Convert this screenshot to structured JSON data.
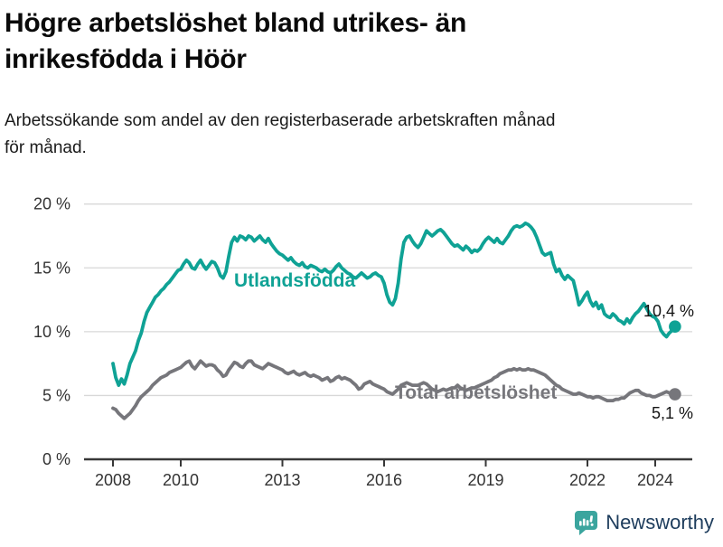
{
  "header": {
    "title_lines": [
      "Högre arbetslöshet bland utrikes- än",
      "inrikesfödda i Höör"
    ],
    "subtitle_lines": [
      "Arbetssökande som andel av den registerbaserade arbetskraften månad",
      "för månad."
    ]
  },
  "footer": {
    "brand_name": "Newsworthy",
    "brand_icon": "bar-chart-speech-bubble",
    "brand_icon_color": "#3ba59e",
    "brand_text_color": "#1d3c5c"
  },
  "colors": {
    "background": "#ffffff",
    "grid": "#d8d8d8",
    "axis": "#383838",
    "axis_text": "#333333",
    "value_label_text": "#141414",
    "series_foreign": "#0fa295",
    "series_total": "#76767b"
  },
  "chart_data": {
    "type": "line",
    "x_unit": "month",
    "x_start": "2008-01",
    "x_end": "2024-08",
    "grid": "horizontal",
    "ylim": [
      0,
      20
    ],
    "x_ticks": [
      {
        "value": 2008,
        "label": "2008"
      },
      {
        "value": 2010,
        "label": "2010"
      },
      {
        "value": 2013,
        "label": "2013"
      },
      {
        "value": 2016,
        "label": "2016"
      },
      {
        "value": 2019,
        "label": "2019"
      },
      {
        "value": 2022,
        "label": "2022"
      },
      {
        "value": 2024,
        "label": "2024"
      }
    ],
    "y_ticks": [
      {
        "value": 0,
        "label": "0 %"
      },
      {
        "value": 5,
        "label": "5 %"
      },
      {
        "value": 10,
        "label": "10 %"
      },
      {
        "value": 15,
        "label": "15 %"
      },
      {
        "value": 20,
        "label": "20 %"
      }
    ],
    "series": [
      {
        "name": "Utlandsfödda",
        "color": "#0fa295",
        "end_label": "10,4 %",
        "end_value": 10.4,
        "values": [
          7.5,
          6.4,
          5.8,
          6.3,
          5.9,
          6.6,
          7.5,
          8.0,
          8.5,
          9.3,
          9.9,
          10.8,
          11.5,
          11.9,
          12.3,
          12.7,
          12.9,
          13.2,
          13.4,
          13.7,
          13.9,
          14.2,
          14.5,
          14.8,
          14.9,
          15.3,
          15.6,
          15.4,
          15.0,
          14.9,
          15.3,
          15.6,
          15.2,
          14.9,
          15.2,
          15.5,
          15.4,
          15.0,
          14.4,
          14.2,
          14.7,
          15.9,
          17.0,
          17.4,
          17.1,
          17.5,
          17.4,
          17.2,
          17.5,
          17.4,
          17.1,
          17.3,
          17.5,
          17.2,
          17.0,
          17.3,
          16.9,
          16.6,
          16.3,
          16.1,
          16.0,
          15.8,
          15.6,
          15.8,
          15.5,
          15.3,
          15.2,
          15.4,
          15.1,
          15.0,
          15.2,
          15.1,
          15.0,
          14.8,
          14.7,
          14.9,
          14.7,
          14.6,
          14.8,
          15.1,
          15.3,
          15.0,
          14.8,
          14.6,
          14.5,
          14.3,
          14.2,
          14.4,
          14.6,
          14.4,
          14.2,
          14.3,
          14.5,
          14.6,
          14.4,
          14.3,
          13.8,
          12.9,
          12.3,
          12.1,
          12.6,
          13.8,
          15.7,
          17.0,
          17.4,
          17.5,
          17.1,
          16.8,
          16.6,
          16.9,
          17.4,
          17.9,
          17.7,
          17.5,
          17.7,
          17.9,
          18.0,
          17.8,
          17.5,
          17.2,
          16.9,
          16.7,
          16.8,
          16.6,
          16.4,
          16.7,
          16.5,
          16.2,
          16.4,
          16.3,
          16.5,
          16.9,
          17.2,
          17.4,
          17.2,
          17.0,
          17.3,
          17.0,
          16.9,
          17.2,
          17.5,
          17.9,
          18.2,
          18.3,
          18.2,
          18.3,
          18.5,
          18.4,
          18.2,
          17.9,
          17.4,
          16.8,
          16.2,
          16.0,
          16.1,
          16.2,
          15.3,
          14.7,
          14.9,
          14.4,
          14.1,
          14.4,
          14.2,
          14.0,
          13.1,
          12.1,
          12.4,
          12.8,
          13.1,
          12.4,
          12.0,
          12.3,
          11.8,
          12.1,
          11.4,
          11.2,
          11.1,
          11.4,
          11.2,
          10.9,
          10.8,
          10.6,
          11.0,
          10.7,
          11.1,
          11.4,
          11.6,
          11.9,
          12.2,
          11.8,
          11.4,
          11.2,
          11.1,
          10.8,
          10.1,
          9.8,
          9.6,
          9.9,
          10.1,
          10.4
        ]
      },
      {
        "name": "Total arbetslöshet",
        "color": "#76767b",
        "end_label": "5,1 %",
        "end_value": 5.1,
        "values": [
          4.0,
          3.9,
          3.6,
          3.4,
          3.2,
          3.4,
          3.6,
          3.9,
          4.2,
          4.6,
          4.9,
          5.1,
          5.3,
          5.5,
          5.8,
          6.0,
          6.2,
          6.4,
          6.5,
          6.6,
          6.8,
          6.9,
          7.0,
          7.1,
          7.2,
          7.4,
          7.6,
          7.7,
          7.3,
          7.1,
          7.4,
          7.7,
          7.5,
          7.3,
          7.4,
          7.4,
          7.3,
          7.0,
          6.8,
          6.5,
          6.6,
          7.0,
          7.3,
          7.6,
          7.5,
          7.3,
          7.2,
          7.5,
          7.7,
          7.7,
          7.4,
          7.3,
          7.2,
          7.1,
          7.3,
          7.5,
          7.4,
          7.3,
          7.2,
          7.1,
          7.0,
          6.8,
          6.7,
          6.8,
          6.9,
          6.7,
          6.6,
          6.7,
          6.8,
          6.6,
          6.5,
          6.6,
          6.5,
          6.4,
          6.2,
          6.3,
          6.4,
          6.1,
          6.2,
          6.4,
          6.5,
          6.3,
          6.4,
          6.3,
          6.2,
          6.0,
          5.8,
          5.5,
          5.6,
          5.9,
          6.0,
          6.1,
          5.9,
          5.8,
          5.7,
          5.6,
          5.5,
          5.3,
          5.2,
          5.1,
          5.3,
          5.5,
          5.8,
          5.9,
          6.0,
          5.9,
          5.8,
          5.8,
          5.8,
          5.9,
          6.0,
          5.9,
          5.7,
          5.5,
          5.4,
          5.3,
          5.4,
          5.5,
          5.4,
          5.5,
          5.6,
          5.6,
          5.8,
          5.6,
          5.5,
          5.4,
          5.5,
          5.6,
          5.6,
          5.7,
          5.8,
          5.9,
          6.0,
          6.1,
          6.2,
          6.4,
          6.5,
          6.7,
          6.8,
          6.9,
          7.0,
          7.0,
          7.1,
          7.0,
          7.1,
          7.0,
          7.0,
          7.1,
          7.0,
          7.0,
          6.9,
          6.8,
          6.7,
          6.6,
          6.4,
          6.2,
          6.0,
          5.8,
          5.7,
          5.5,
          5.4,
          5.3,
          5.2,
          5.1,
          5.1,
          5.2,
          5.1,
          5.0,
          4.9,
          4.9,
          4.8,
          4.9,
          4.9,
          4.8,
          4.7,
          4.6,
          4.6,
          4.6,
          4.7,
          4.7,
          4.8,
          4.8,
          5.0,
          5.2,
          5.3,
          5.4,
          5.4,
          5.2,
          5.1,
          5.0,
          5.0,
          4.9,
          4.9,
          5.0,
          5.1,
          5.2,
          5.3,
          5.2,
          5.1,
          5.1
        ]
      }
    ]
  }
}
